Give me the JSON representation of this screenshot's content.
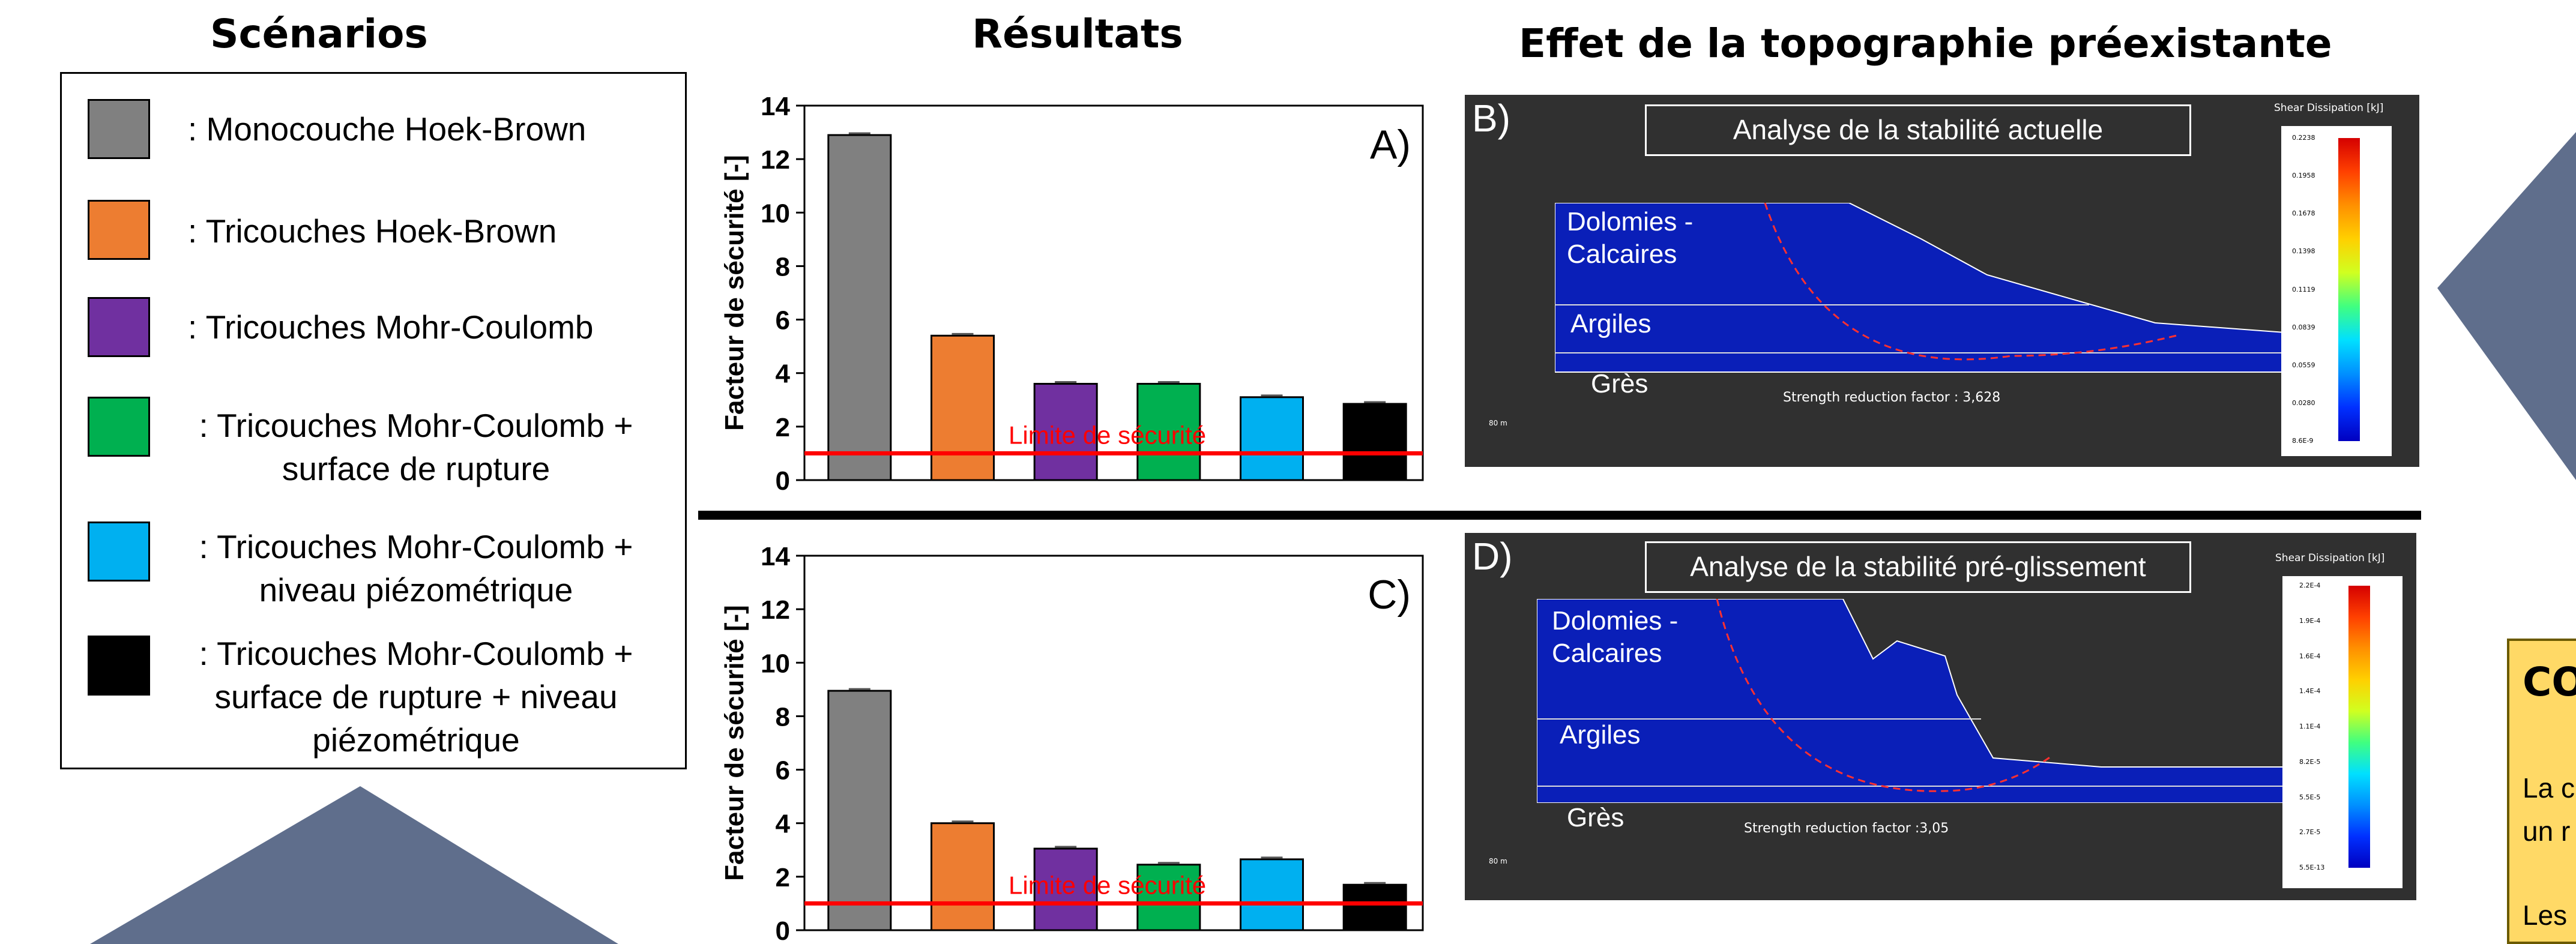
{
  "headers": {
    "scenarios": "Scénarios",
    "results": "Résultats",
    "topography": "Effet de la topographie préexistante"
  },
  "legend": [
    {
      "color": "#808080",
      "text": ": Monocouche Hoek-Brown"
    },
    {
      "color": "#ed7d31",
      "text": ": Tricouches Hoek-Brown"
    },
    {
      "color": "#7030a0",
      "text": ": Tricouches Mohr-Coulomb"
    },
    {
      "color": "#00b050",
      "text": ": Tricouches Mohr-Coulomb + surface de rupture"
    },
    {
      "color": "#00b0f0",
      "text": ": Tricouches Mohr-Coulomb + niveau piézométrique"
    },
    {
      "color": "#000000",
      "text": ": Tricouches Mohr-Coulomb + surface de rupture + niveau piézométrique"
    }
  ],
  "chart_data": [
    {
      "type": "bar",
      "panel_label": "A)",
      "ylabel": "Facteur de sécurité [-]",
      "ylim": [
        0,
        14
      ],
      "yticks": [
        0,
        2,
        4,
        6,
        8,
        10,
        12,
        14
      ],
      "values": [
        12.9,
        5.4,
        3.6,
        3.6,
        3.1,
        2.85
      ],
      "colors": [
        "#808080",
        "#ed7d31",
        "#7030a0",
        "#00b050",
        "#00b0f0",
        "#000000"
      ],
      "threshold": {
        "value": 1.0,
        "label": "Limite de sécurité",
        "color": "#ff0000"
      }
    },
    {
      "type": "bar",
      "panel_label": "C)",
      "ylabel": "Facteur de sécurité [-]",
      "ylim": [
        0,
        14
      ],
      "yticks": [
        0,
        2,
        4,
        6,
        8,
        10,
        12,
        14
      ],
      "values": [
        8.95,
        4.0,
        3.05,
        2.45,
        2.65,
        1.7
      ],
      "colors": [
        "#808080",
        "#ed7d31",
        "#7030a0",
        "#00b050",
        "#00b0f0",
        "#000000"
      ],
      "threshold": {
        "value": 1.0,
        "label": "Limite de sécurité",
        "color": "#ff0000"
      }
    }
  ],
  "sim_b": {
    "letter": "B)",
    "title": "Analyse de la stabilité actuelle",
    "layers": [
      "Dolomies -\nCalcaires",
      "Argiles",
      "Grès"
    ],
    "srf": "Strength reduction factor : 3,628",
    "colorbar_title": "Shear Dissipation [kJ]",
    "colorbar_ticks": [
      "0.2238",
      "0.1958",
      "0.1678",
      "0.1398",
      "0.1119",
      "0.0839",
      "0.0559",
      "0.0280",
      "8.6E-9"
    ],
    "scale": "80 m"
  },
  "sim_d": {
    "letter": "D)",
    "title": "Analyse de la stabilité pré-glissement",
    "layers": [
      "Dolomies -\nCalcaires",
      "Argiles",
      "Grès"
    ],
    "srf": "Strength reduction factor :3,05",
    "colorbar_title": "Shear Dissipation [kJ]",
    "colorbar_ticks": [
      "2.2E-4",
      "1.9E-4",
      "1.6E-4",
      "1.4E-4",
      "1.1E-4",
      "8.2E-5",
      "5.5E-5",
      "2.7E-5",
      "5.5E-13"
    ],
    "scale": "80 m"
  },
  "conclusion": {
    "title": "CO",
    "line1": "La c",
    "line2": "un r",
    "line3": "Les"
  },
  "decor_colors": {
    "arrow": "#5f6e8c",
    "panel": "#303030",
    "sim_fill": "#0a1fb8"
  }
}
